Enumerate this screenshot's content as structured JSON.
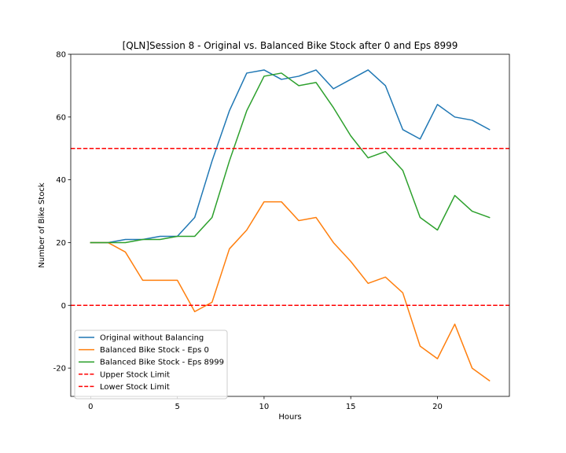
{
  "chart_data": {
    "type": "line",
    "title": "[QLN]Session 8 - Original vs. Balanced Bike Stock after 0 and Eps 8999",
    "xlabel": "Hours",
    "ylabel": "Number of Bike Stock",
    "xlim": [
      -1.15,
      24.15
    ],
    "ylim": [
      -29,
      80
    ],
    "xticks": [
      0,
      5,
      10,
      15,
      20
    ],
    "yticks": [
      -20,
      0,
      20,
      40,
      60,
      80
    ],
    "grid": false,
    "legend_position": "lower-left",
    "x": [
      0,
      1,
      2,
      3,
      4,
      5,
      6,
      7,
      8,
      9,
      10,
      11,
      12,
      13,
      14,
      15,
      16,
      17,
      18,
      19,
      20,
      21,
      22,
      23
    ],
    "series": [
      {
        "name": "Original without Balancing",
        "color": "#1f77b4",
        "values": [
          20,
          20,
          21,
          21,
          22,
          22,
          28,
          46,
          62,
          74,
          75,
          72,
          73,
          75,
          69,
          72,
          75,
          70,
          56,
          53,
          64,
          60,
          59,
          56
        ]
      },
      {
        "name": "Balanced Bike Stock - Eps 0",
        "color": "#ff7f0e",
        "values": [
          20,
          20,
          17,
          8,
          8,
          8,
          -2,
          1,
          18,
          24,
          33,
          33,
          27,
          28,
          20,
          14,
          7,
          9,
          4,
          -13,
          -17,
          -6,
          -20,
          -24
        ]
      },
      {
        "name": "Balanced Bike Stock - Eps 8999",
        "color": "#2ca02c",
        "values": [
          20,
          20,
          20,
          21,
          21,
          22,
          22,
          28,
          46,
          62,
          73,
          74,
          70,
          71,
          63,
          54,
          47,
          49,
          43,
          28,
          24,
          35,
          30,
          28
        ]
      }
    ],
    "reference_lines": [
      {
        "name": "Upper Stock Limit",
        "y": 50,
        "color": "#ff0000",
        "style": "dashed"
      },
      {
        "name": "Lower Stock Limit",
        "y": 0,
        "color": "#ff0000",
        "style": "dashed"
      }
    ]
  }
}
